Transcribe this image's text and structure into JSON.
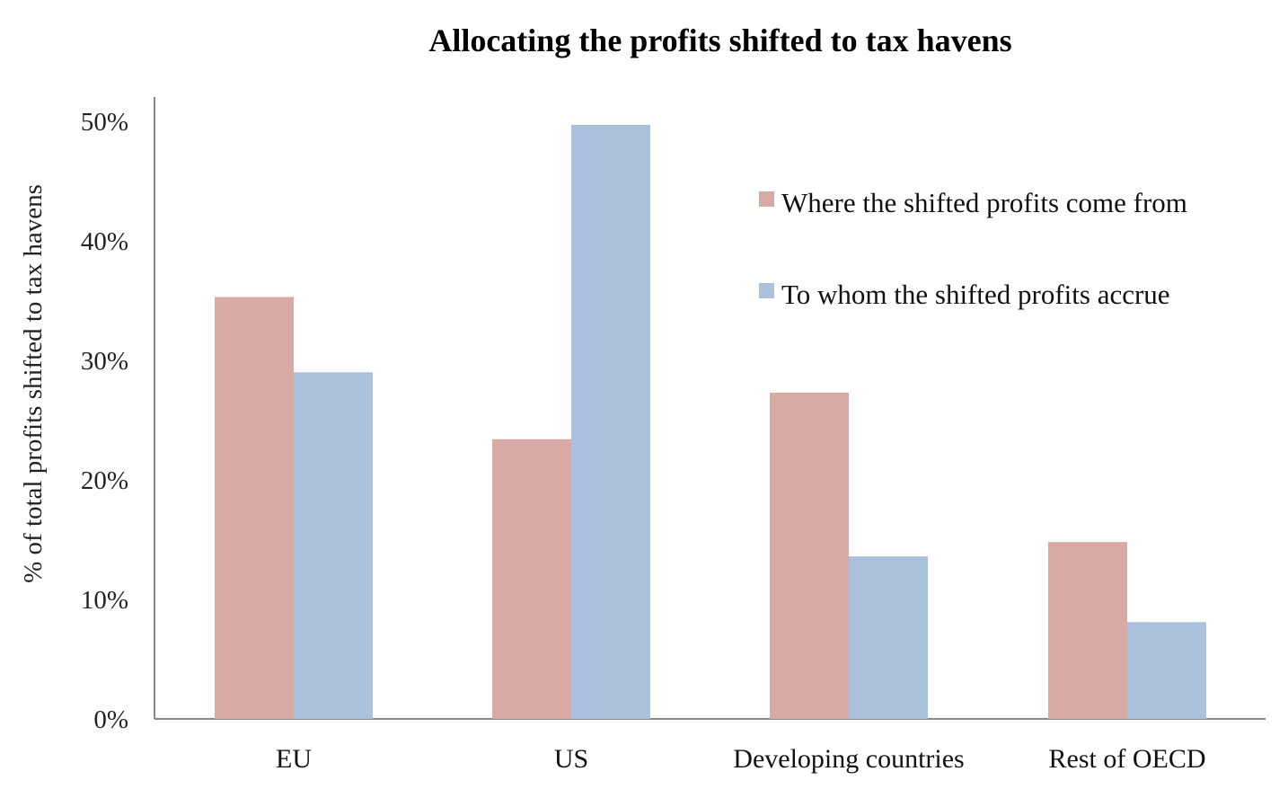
{
  "chart_data": {
    "type": "bar",
    "title": "Allocating the profits shifted to tax havens",
    "xlabel": "",
    "ylabel": "% of total profits shifted to tax havens",
    "categories": [
      "EU",
      "US",
      "Developing countries",
      "Rest of OECD"
    ],
    "series": [
      {
        "name": "Where the shifted profits come from",
        "color": "#d9a9a6",
        "values": [
          35.3,
          23.4,
          27.3,
          14.8
        ]
      },
      {
        "name": "To whom the shifted profits accrue",
        "color": "#abc0dd",
        "values": [
          29.0,
          49.7,
          13.6,
          8.1
        ]
      }
    ],
    "ylim": [
      0,
      50
    ],
    "yticks": [
      0,
      10,
      20,
      30,
      40,
      50
    ],
    "ytick_labels": [
      "0%",
      "10%",
      "20%",
      "30%",
      "40%",
      "50%"
    ],
    "grid": false,
    "legend_position": "top-right"
  }
}
